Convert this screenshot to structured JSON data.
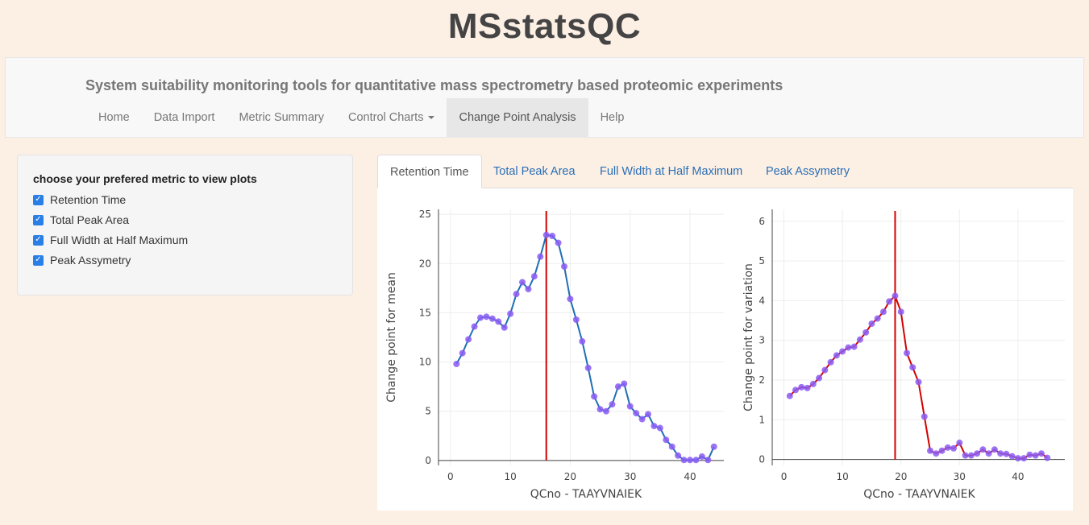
{
  "app": {
    "title": "MSstatsQC",
    "subtitle": "System suitability monitoring tools for quantitative mass spectrometry based proteomic experiments"
  },
  "nav": {
    "items": [
      {
        "label": "Home"
      },
      {
        "label": "Data Import"
      },
      {
        "label": "Metric Summary"
      },
      {
        "label": "Control Charts"
      },
      {
        "label": "Change Point Analysis"
      },
      {
        "label": "Help"
      }
    ],
    "active": "Change Point Analysis"
  },
  "sidebar": {
    "heading": "choose your prefered metric to view plots",
    "options": [
      {
        "label": "Retention Time",
        "checked": true
      },
      {
        "label": "Total Peak Area",
        "checked": true
      },
      {
        "label": "Full Width at Half Maximum",
        "checked": true
      },
      {
        "label": "Peak Assymetry",
        "checked": true
      }
    ],
    "checkbox_color": "#2a7fe6"
  },
  "tabs": [
    {
      "label": "Retention Time",
      "active": true
    },
    {
      "label": "Total Peak Area",
      "active": false
    },
    {
      "label": "Full Width at Half Maximum",
      "active": false
    },
    {
      "label": "Peak Assymetry",
      "active": false
    }
  ],
  "chart_data": [
    {
      "type": "line",
      "xlabel": "QCno -  TAAYVNAIEK",
      "ylabel": "Change point for mean",
      "xlim": [
        -2,
        47
      ],
      "ylim": [
        -0.5,
        25.5
      ],
      "xticks": [
        0,
        10,
        20,
        30,
        40
      ],
      "yticks": [
        0,
        5,
        10,
        15,
        20,
        25
      ],
      "grid": true,
      "line_color": "#1f6fb4",
      "marker_color": "#8a5cf5",
      "changepoint_color": "#d40000",
      "changepoint_x": 16,
      "x": [
        1,
        2,
        3,
        4,
        5,
        6,
        7,
        8,
        9,
        10,
        11,
        12,
        13,
        14,
        15,
        16,
        17,
        18,
        19,
        20,
        21,
        22,
        23,
        24,
        25,
        26,
        27,
        28,
        29,
        30,
        31,
        32,
        33,
        34,
        35,
        36,
        37,
        38,
        39,
        40,
        41,
        42,
        43,
        44
      ],
      "y": [
        9.8,
        10.9,
        12.3,
        13.6,
        14.5,
        14.6,
        14.4,
        14.1,
        13.5,
        14.9,
        16.9,
        18.1,
        17.4,
        18.7,
        20.7,
        22.9,
        22.8,
        22.1,
        19.7,
        16.4,
        14.3,
        12.1,
        9.4,
        6.5,
        5.2,
        5.0,
        5.7,
        7.5,
        7.8,
        5.5,
        4.8,
        4.2,
        4.7,
        3.5,
        3.3,
        2.1,
        1.4,
        0.5,
        0.05,
        0.05,
        0.05,
        0.4,
        0.05,
        1.4
      ]
    },
    {
      "type": "line",
      "xlabel": "QCno -  TAAYVNAIEK",
      "ylabel": "Change point for variation",
      "xlim": [
        -2,
        48
      ],
      "ylim": [
        -0.15,
        6.3
      ],
      "xticks": [
        0,
        10,
        20,
        30,
        40
      ],
      "yticks": [
        0,
        1,
        2,
        3,
        4,
        5,
        6
      ],
      "grid": true,
      "line_color": "#d40000",
      "marker_color": "#8a5cf5",
      "changepoint_color": "#d40000",
      "changepoint_x": 19,
      "x": [
        1,
        2,
        3,
        4,
        5,
        6,
        7,
        8,
        9,
        10,
        11,
        12,
        13,
        14,
        15,
        16,
        17,
        18,
        19,
        20,
        21,
        22,
        23,
        24,
        25,
        26,
        27,
        28,
        29,
        30,
        31,
        32,
        33,
        34,
        35,
        36,
        37,
        38,
        39,
        40,
        41,
        42,
        43,
        44,
        45
      ],
      "y": [
        1.6,
        1.75,
        1.82,
        1.8,
        1.9,
        2.05,
        2.25,
        2.45,
        2.62,
        2.72,
        2.82,
        2.84,
        3.02,
        3.2,
        3.42,
        3.55,
        3.72,
        3.98,
        4.12,
        3.72,
        2.68,
        2.32,
        1.95,
        1.08,
        0.22,
        0.15,
        0.22,
        0.3,
        0.28,
        0.42,
        0.1,
        0.1,
        0.15,
        0.25,
        0.15,
        0.25,
        0.15,
        0.14,
        0.08,
        0.03,
        0.03,
        0.12,
        0.1,
        0.15,
        0.04
      ]
    }
  ]
}
